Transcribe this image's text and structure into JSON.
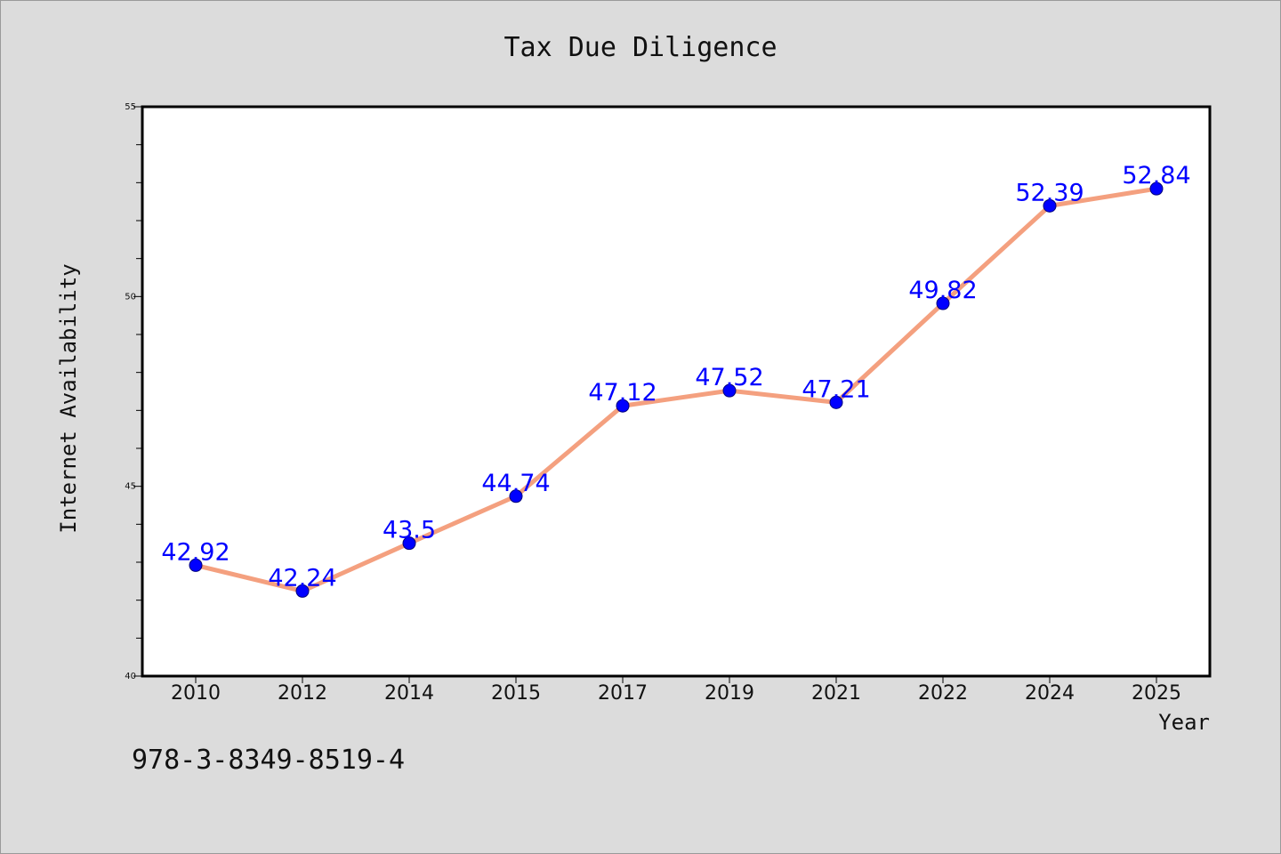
{
  "chart_data": {
    "type": "line",
    "title": "Tax Due Diligence",
    "xlabel": "Year",
    "ylabel": "Internet Availability",
    "categories": [
      "2010",
      "2012",
      "2014",
      "2015",
      "2017",
      "2019",
      "2021",
      "2022",
      "2024",
      "2025"
    ],
    "series": [
      {
        "values": [
          42.92,
          42.24,
          43.5,
          44.74,
          47.12,
          47.52,
          47.21,
          49.82,
          52.39,
          52.84
        ],
        "line_color": "#f4a07f",
        "marker_color": "#0000ff"
      }
    ],
    "data_labels": [
      "42.92",
      "42.24",
      "43.5",
      "44.74",
      "47.12",
      "47.52",
      "47.21",
      "49.82",
      "52.39",
      "52.84"
    ],
    "ylim": [
      40,
      55
    ],
    "yticks": [
      "40",
      "45",
      "50",
      "55"
    ],
    "grid": false,
    "legend": "none",
    "label_color": "#0000ff"
  },
  "footer": {
    "isbn": "978-3-8349-8519-4"
  }
}
